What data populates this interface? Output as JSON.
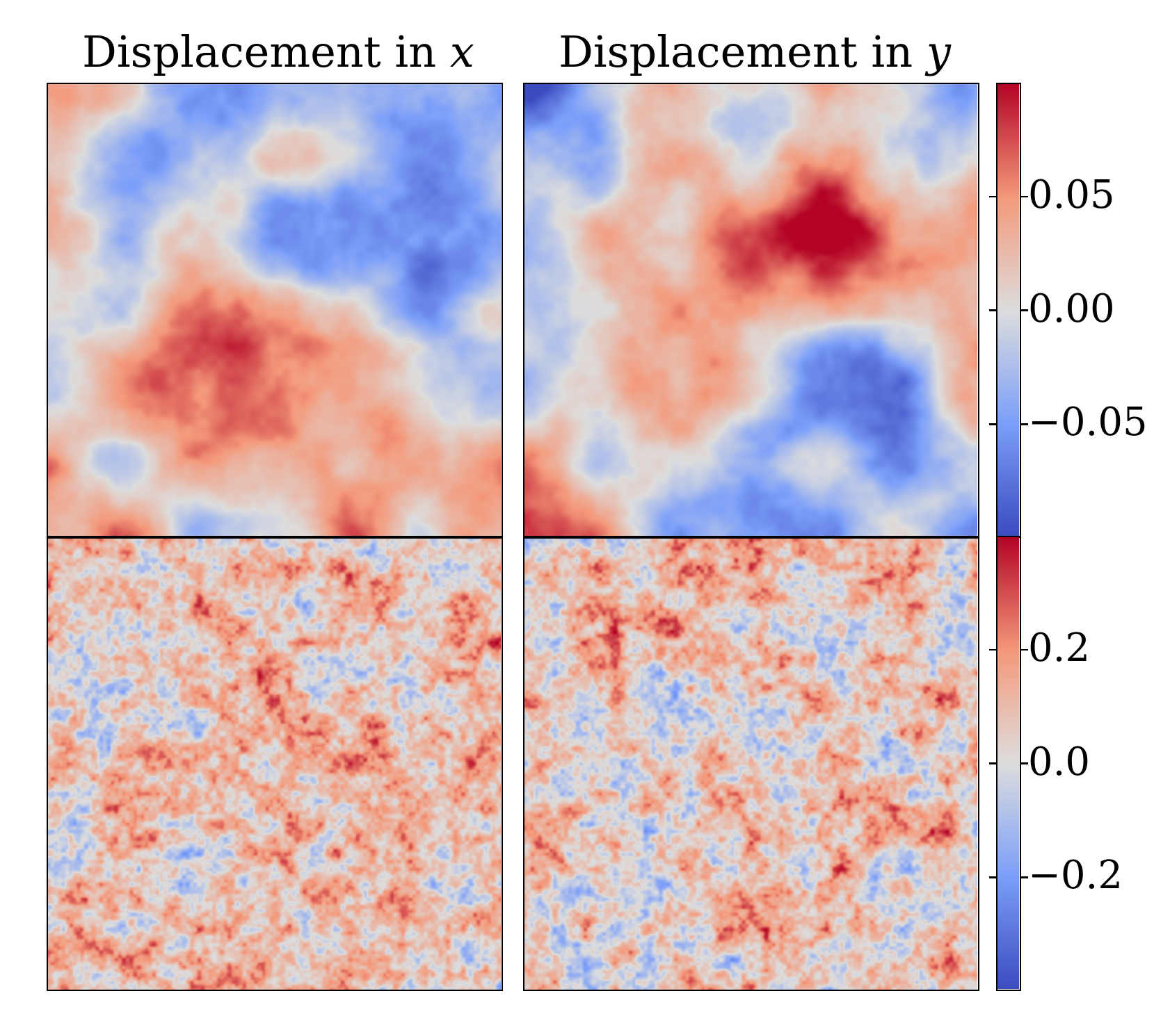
{
  "chart_data": {
    "type": "heatmap",
    "colormap": "coolwarm",
    "panels": [
      {
        "row": 0,
        "col": 0,
        "title_text": "Displacement in ",
        "title_var": "x",
        "scale": "top"
      },
      {
        "row": 0,
        "col": 1,
        "title_text": "Displacement in ",
        "title_var": "y",
        "scale": "top"
      },
      {
        "row": 1,
        "col": 0,
        "title_text": "",
        "title_var": "",
        "scale": "bottom"
      },
      {
        "row": 1,
        "col": 1,
        "title_text": "",
        "title_var": "",
        "scale": "bottom"
      }
    ],
    "colorbars": [
      {
        "name": "top",
        "range": [
          -0.1,
          0.1
        ],
        "ticks": [
          0.05,
          0.0,
          -0.05
        ],
        "tick_labels": [
          "0.05",
          "0.00",
          "−0.05"
        ]
      },
      {
        "name": "bottom",
        "range": [
          -0.4,
          0.4
        ],
        "ticks": [
          0.2,
          0.0,
          -0.2
        ],
        "tick_labels": [
          "0.2",
          "0.0",
          "−0.2"
        ]
      }
    ]
  }
}
